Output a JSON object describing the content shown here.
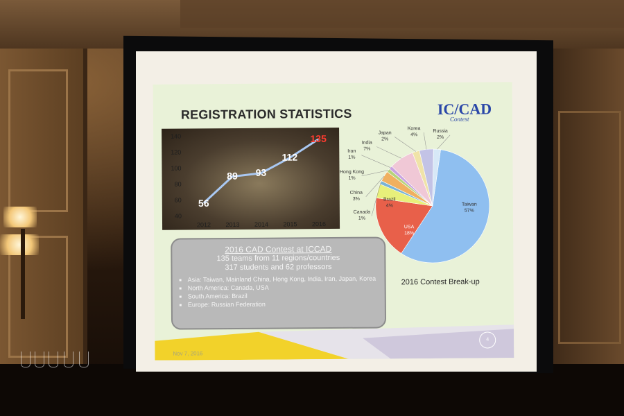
{
  "slide": {
    "title": "REGISTRATION STATISTICS",
    "logo": {
      "main": "IC/CAD",
      "sub": "Contest"
    },
    "footer_date": "Nov 7, 2016",
    "page_number": "4"
  },
  "chart_data": [
    {
      "type": "line",
      "x": [
        "2012",
        "2013",
        "2014",
        "2015",
        "2016"
      ],
      "values": [
        56,
        89,
        93,
        112,
        135
      ],
      "data_labels": [
        "56",
        "89",
        "93",
        "112",
        "135"
      ],
      "y_ticks": [
        "40",
        "60",
        "80",
        "100",
        "120",
        "140"
      ],
      "ylim": [
        40,
        140
      ],
      "line_color": "#a9c8f2",
      "highlight_color": "#ff3b2f"
    },
    {
      "type": "pie",
      "caption": "2016 Contest Break-up",
      "slices": [
        {
          "label": "Taiwan",
          "percent_label": "57%",
          "value": 57,
          "color": "#8fbff0"
        },
        {
          "label": "USA",
          "percent_label": "18%",
          "value": 18,
          "color": "#e8604a"
        },
        {
          "label": "Brazil",
          "percent_label": "4%",
          "value": 4,
          "color": "#e8f07a"
        },
        {
          "label": "Canada",
          "percent_label": "1%",
          "value": 1,
          "color": "#78b3d6"
        },
        {
          "label": "China",
          "percent_label": "3%",
          "value": 3,
          "color": "#f0b060"
        },
        {
          "label": "Hong Kong",
          "percent_label": "1%",
          "value": 1,
          "color": "#b6d37a"
        },
        {
          "label": "Iran",
          "percent_label": "1%",
          "value": 1,
          "color": "#c9a3e0"
        },
        {
          "label": "India",
          "percent_label": "7%",
          "value": 7,
          "color": "#f0c8d6"
        },
        {
          "label": "Japan",
          "percent_label": "2%",
          "value": 2,
          "color": "#f0e3a8"
        },
        {
          "label": "Korea",
          "percent_label": "4%",
          "value": 4,
          "color": "#c3c3e6"
        },
        {
          "label": "Russia",
          "percent_label": "2%",
          "value": 2,
          "color": "#d7e8f7"
        }
      ]
    }
  ],
  "info": {
    "heading": "2016 CAD Contest at ICCAD",
    "line1": "135 teams from 11 regions/countries",
    "line2": "317 students and 62 professors",
    "bullets": [
      "Asia: Taiwan, Mainland China, Hong Kong, India, Iran, Japan, Korea",
      "North America: Canada, USA",
      "South America: Brazil",
      "Europe: Russian Federation"
    ]
  }
}
